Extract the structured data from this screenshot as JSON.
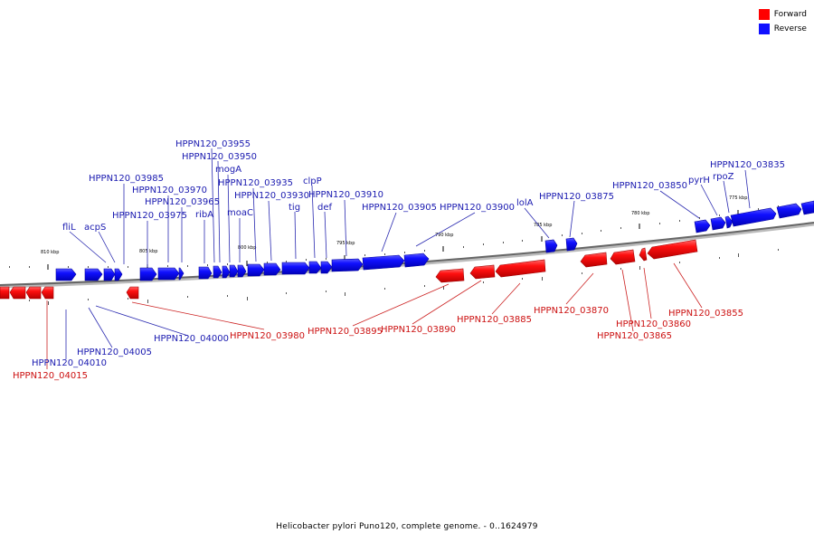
{
  "legend": {
    "forward_label": "Forward",
    "reverse_label": "Reverse",
    "forward_color": "#ff0000",
    "reverse_color": "#1010ff"
  },
  "caption": "Helicobacter pylori Puno120, complete genome. - 0..1624979",
  "scale_ticks": [
    "810 kbp",
    "805 kbp",
    "800 kbp",
    "795 kbp",
    "790 kbp",
    "785 kbp",
    "780 kbp",
    "775 kbp"
  ],
  "reverse_genes": [
    "fliL",
    "acpS",
    "HPPN120_03985",
    "HPPN120_03975",
    "HPPN120_03970",
    "HPPN120_03965",
    "ribA",
    "HPPN120_03955",
    "HPPN120_03950",
    "mogA",
    "moaC",
    "HPPN120_03935",
    "HPPN120_03930",
    "tig",
    "clpP",
    "def",
    "HPPN120_03910",
    "HPPN120_03905",
    "HPPN120_03900",
    "lolA",
    "HPPN120_03875",
    "HPPN120_03850",
    "pyrH",
    "rpoZ",
    "HPPN120_03835",
    "HPPN120_04000",
    "HPPN120_04005",
    "HPPN120_04010"
  ],
  "forward_genes": [
    "HPPN120_04015",
    "HPPN120_03980",
    "HPPN120_03895",
    "HPPN120_03890",
    "HPPN120_03885",
    "HPPN120_03870",
    "HPPN120_03860",
    "HPPN120_03865",
    "HPPN120_03855"
  ]
}
